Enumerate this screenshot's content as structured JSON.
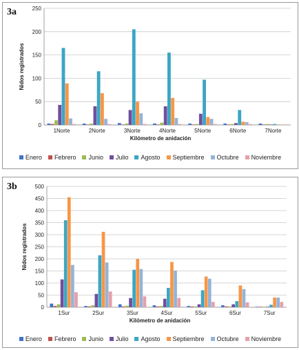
{
  "panels": [
    {
      "label": "3a"
    },
    {
      "label": "3b"
    }
  ],
  "series_colors": {
    "Enero": "#4472c4",
    "Febrero": "#c0504d",
    "Junio": "#9bbb59",
    "Julio": "#6f4f9e",
    "Agosto": "#3ba6c4",
    "Septiembre": "#f79646",
    "Octubre": "#95b3d7",
    "Noviembre": "#e6a0a8"
  },
  "chart_data": [
    {
      "type": "bar",
      "categories": [
        "1Norte",
        "2Norte",
        "3Norte",
        "4Norte",
        "5Norte",
        "6Norte",
        "7Norte"
      ],
      "xlabel": "Kilómetro de anidación",
      "ylabel": "Nidos registrados",
      "ylim": [
        0,
        250
      ],
      "yticks": [
        0,
        50,
        100,
        150,
        200,
        250
      ],
      "grid": true,
      "legend": "bottom",
      "series": [
        {
          "name": "Enero",
          "values": [
            3,
            3,
            4,
            3,
            3,
            3,
            3
          ]
        },
        {
          "name": "Febrero",
          "values": [
            2,
            1,
            1,
            1,
            1,
            1,
            1
          ]
        },
        {
          "name": "Junio",
          "values": [
            10,
            3,
            3,
            5,
            2,
            2,
            2
          ]
        },
        {
          "name": "Julio",
          "values": [
            43,
            40,
            32,
            40,
            24,
            4,
            1
          ]
        },
        {
          "name": "Agosto",
          "values": [
            165,
            115,
            205,
            155,
            97,
            32,
            2
          ]
        },
        {
          "name": "Septiembre",
          "values": [
            89,
            68,
            50,
            58,
            17,
            7,
            1
          ]
        },
        {
          "name": "Octubre",
          "values": [
            14,
            13,
            25,
            15,
            13,
            6,
            1
          ]
        },
        {
          "name": "Noviembre",
          "values": [
            2,
            2,
            2,
            2,
            2,
            2,
            1
          ]
        }
      ]
    },
    {
      "type": "bar",
      "categories": [
        "1Sur",
        "2Sur",
        "3Sur",
        "4Sur",
        "5Sur",
        "6Sur",
        "7Sur"
      ],
      "xlabel": "Kilómetro de anidación",
      "ylabel": "Nidos registrados",
      "ylim": [
        0,
        500
      ],
      "yticks": [
        0,
        50,
        100,
        150,
        200,
        250,
        300,
        350,
        400,
        450,
        500
      ],
      "grid": true,
      "legend": "bottom",
      "series": [
        {
          "name": "Enero",
          "values": [
            15,
            5,
            12,
            8,
            5,
            8,
            2
          ]
        },
        {
          "name": "Febrero",
          "values": [
            5,
            3,
            3,
            3,
            3,
            3,
            2
          ]
        },
        {
          "name": "Junio",
          "values": [
            12,
            8,
            6,
            5,
            3,
            3,
            2
          ]
        },
        {
          "name": "Julio",
          "values": [
            115,
            55,
            38,
            35,
            12,
            12,
            2
          ]
        },
        {
          "name": "Agosto",
          "values": [
            360,
            215,
            155,
            80,
            70,
            25,
            10
          ]
        },
        {
          "name": "Septiembre",
          "values": [
            455,
            312,
            200,
            187,
            127,
            90,
            40
          ]
        },
        {
          "name": "Octubre",
          "values": [
            175,
            185,
            158,
            152,
            118,
            75,
            40
          ]
        },
        {
          "name": "Noviembre",
          "values": [
            62,
            65,
            45,
            38,
            22,
            20,
            22
          ]
        }
      ]
    }
  ]
}
